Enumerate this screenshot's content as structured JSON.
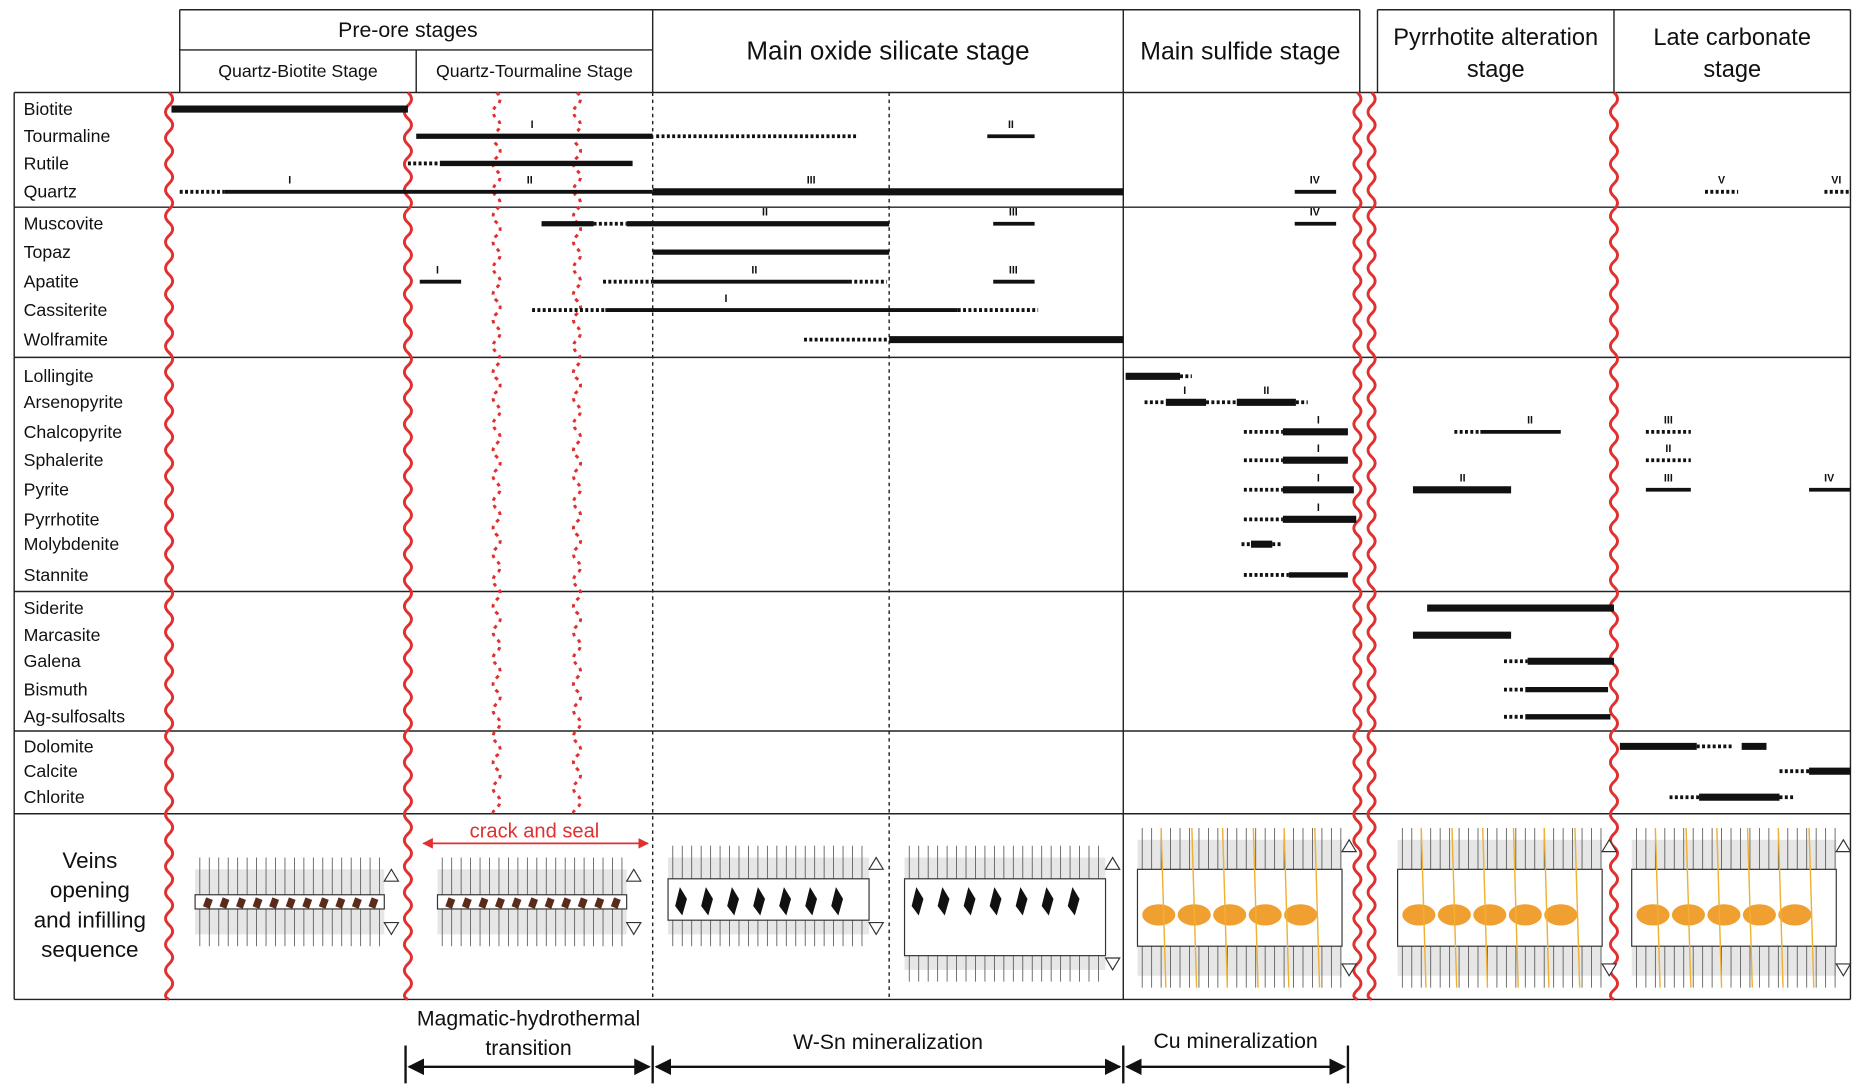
{
  "header": {
    "pre_ore": "Pre-ore stages",
    "substages": [
      "Quartz-Biotite Stage",
      "Quartz-Tourmaline Stage"
    ],
    "stages": [
      [
        "Main oxide silicate stage"
      ],
      [
        "Main sulfide stage"
      ],
      [
        "Pyrrhotite alteration",
        "stage"
      ],
      [
        "Late carbonate",
        "stage"
      ]
    ]
  },
  "minerals": [
    {
      "name": "Biotite",
      "labels": []
    },
    {
      "name": "Tourmaline",
      "labels": [
        "I",
        "II"
      ]
    },
    {
      "name": "Rutile",
      "labels": []
    },
    {
      "name": "Quartz",
      "labels": [
        "I",
        "II",
        "III",
        "IV",
        "V",
        "VI"
      ]
    },
    {
      "name": "Muscovite",
      "labels": [
        "II",
        "III",
        "IV"
      ]
    },
    {
      "name": "Topaz",
      "labels": []
    },
    {
      "name": "Apatite",
      "labels": [
        "I",
        "II",
        "III"
      ]
    },
    {
      "name": "Cassiterite",
      "labels": [
        "I"
      ]
    },
    {
      "name": "Wolframite",
      "labels": []
    },
    {
      "name": "Lollingite",
      "labels": []
    },
    {
      "name": "Arsenopyrite",
      "labels": [
        "I",
        "II"
      ]
    },
    {
      "name": "Chalcopyrite",
      "labels": [
        "I",
        "II",
        "III"
      ]
    },
    {
      "name": "Sphalerite",
      "labels": [
        "I",
        "II"
      ]
    },
    {
      "name": "Pyrite",
      "labels": [
        "I",
        "II",
        "III",
        "IV"
      ]
    },
    {
      "name": "Pyrrhotite",
      "labels": [
        "I"
      ]
    },
    {
      "name": "Molybdenite",
      "labels": []
    },
    {
      "name": "Stannite",
      "labels": []
    },
    {
      "name": "Siderite",
      "labels": []
    },
    {
      "name": "Marcasite",
      "labels": []
    },
    {
      "name": "Galena",
      "labels": []
    },
    {
      "name": "Bismuth",
      "labels": []
    },
    {
      "name": "Ag-sulfosalts",
      "labels": []
    },
    {
      "name": "Dolomite",
      "labels": []
    },
    {
      "name": "Calcite",
      "labels": []
    },
    {
      "name": "Chlorite",
      "labels": []
    }
  ],
  "veins": {
    "label": [
      "Veins",
      "opening",
      "and infilling",
      "sequence"
    ],
    "annotation": "crack and seal"
  },
  "periods": [
    [
      "Magmatic-hydrothermal",
      "transition"
    ],
    [
      "W-Sn mineralization"
    ],
    [
      "Cu mineralization"
    ]
  ]
}
